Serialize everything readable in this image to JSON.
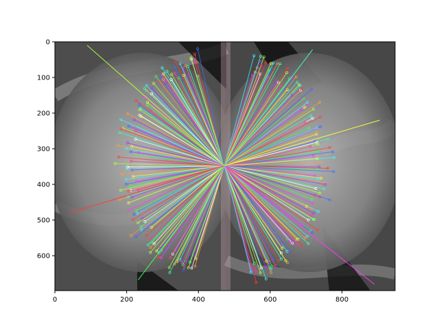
{
  "chart_data": {
    "type": "scatter",
    "title": "",
    "xlabel": "",
    "ylabel": "",
    "xlim": [
      0,
      948
    ],
    "ylim": [
      698,
      0
    ],
    "y_inverted": true,
    "grid": false,
    "legend": "none",
    "x_ticks": [
      0,
      200,
      400,
      600,
      800
    ],
    "y_ticks": [
      0,
      100,
      200,
      300,
      400,
      500,
      600
    ],
    "x_tick_labels": [
      "0",
      "200",
      "400",
      "600",
      "800"
    ],
    "y_tick_labels": [
      "0",
      "100",
      "200",
      "300",
      "400",
      "500",
      "600"
    ],
    "image": {
      "description_free": true,
      "left_panel_extent": [
        0,
        474
      ],
      "right_panel_extent": [
        474,
        948
      ],
      "background_color": "#4a4a4a"
    },
    "match_center": [
      472,
      348
    ],
    "correspondences": {
      "count": 260,
      "radial_rings": [
        {
          "radius_x": 200,
          "radius_y": 300
        },
        {
          "radius_x": 180,
          "radius_y": 280
        }
      ],
      "colors": [
        "#ff3b3b",
        "#3bff5a",
        "#3b6cff",
        "#ff3bf2",
        "#3bf6ff",
        "#f6ff3b",
        "#ff9b3b",
        "#9b3bff",
        "#3bffb4",
        "#ffffff",
        "#b4ff3b",
        "#ff3b8f"
      ]
    },
    "notable_lines": [
      {
        "x1": 42,
        "y1": 480,
        "x2": 472,
        "y2": 348
      },
      {
        "x1": 905,
        "y1": 220,
        "x2": 472,
        "y2": 348
      },
      {
        "x1": 90,
        "y1": 10,
        "x2": 472,
        "y2": 348
      },
      {
        "x1": 890,
        "y1": 680,
        "x2": 472,
        "y2": 348
      },
      {
        "x1": 718,
        "y1": 22,
        "x2": 472,
        "y2": 348
      },
      {
        "x1": 232,
        "y1": 668,
        "x2": 472,
        "y2": 348
      }
    ]
  }
}
